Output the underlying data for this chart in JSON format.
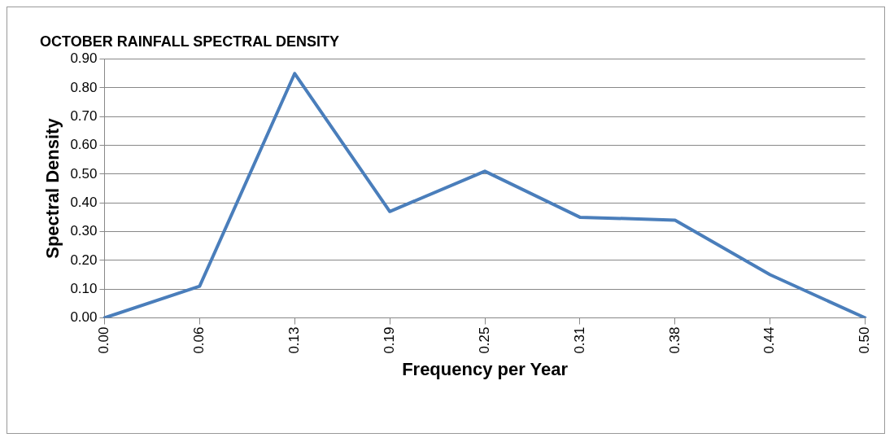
{
  "chart_data": {
    "type": "line",
    "title": "OCTOBER RAINFALL SPECTRAL DENSITY",
    "xlabel": "Frequency per Year",
    "ylabel": "Spectral Density",
    "categories": [
      "0.00",
      "0.06",
      "0.13",
      "0.19",
      "0.25",
      "0.31",
      "0.38",
      "0.44",
      "0.50"
    ],
    "series": [
      {
        "color": "#4a7ebb",
        "values": [
          0.0,
          0.11,
          0.85,
          0.37,
          0.51,
          0.35,
          0.34,
          0.15,
          0.0
        ]
      }
    ],
    "ylim": [
      0,
      0.9
    ],
    "yticks": [
      {
        "value": 0,
        "label": "0.00"
      },
      {
        "value": 0.1,
        "label": "0.10"
      },
      {
        "value": 0.2,
        "label": "0.20"
      },
      {
        "value": 0.3,
        "label": "0.30"
      },
      {
        "value": 0.4,
        "label": "0.40"
      },
      {
        "value": 0.5,
        "label": "0.50"
      },
      {
        "value": 0.6,
        "label": "0.60"
      },
      {
        "value": 0.7,
        "label": "0.70"
      },
      {
        "value": 0.8,
        "label": "0.80"
      },
      {
        "value": 0.9,
        "label": "0.90"
      }
    ],
    "grid": "y",
    "legend": false,
    "marker": "none",
    "line_style": "solid"
  }
}
